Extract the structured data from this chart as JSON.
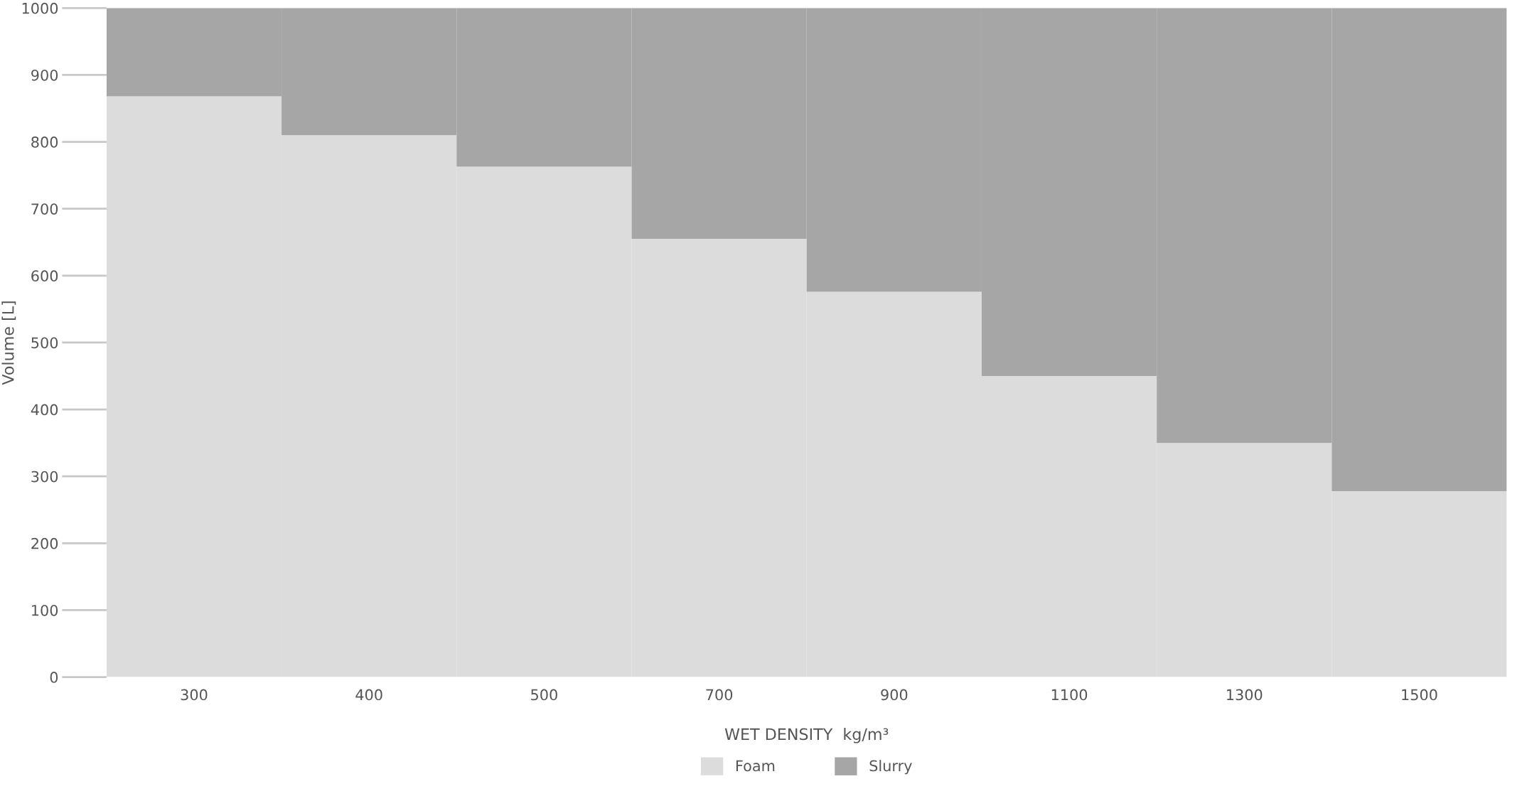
{
  "chart_data": {
    "type": "bar",
    "stacked": true,
    "xlabel": "WET DENSITY  kg/m³",
    "ylabel": "Volume [L]",
    "categories": [
      "300",
      "400",
      "500",
      "700",
      "900",
      "1100",
      "1300",
      "1500"
    ],
    "series": [
      {
        "name": "Foam",
        "color": "#dcdcdc",
        "values": [
          868,
          810,
          763,
          655,
          576,
          450,
          350,
          278
        ]
      },
      {
        "name": "Slurry",
        "color": "#a6a6a6",
        "values": [
          132,
          190,
          237,
          345,
          424,
          550,
          650,
          722
        ]
      }
    ],
    "ylim": [
      0,
      1000
    ],
    "yticks": [
      0,
      100,
      200,
      300,
      400,
      500,
      600,
      700,
      800,
      900,
      1000
    ],
    "grid": false,
    "legend": "bottom"
  }
}
